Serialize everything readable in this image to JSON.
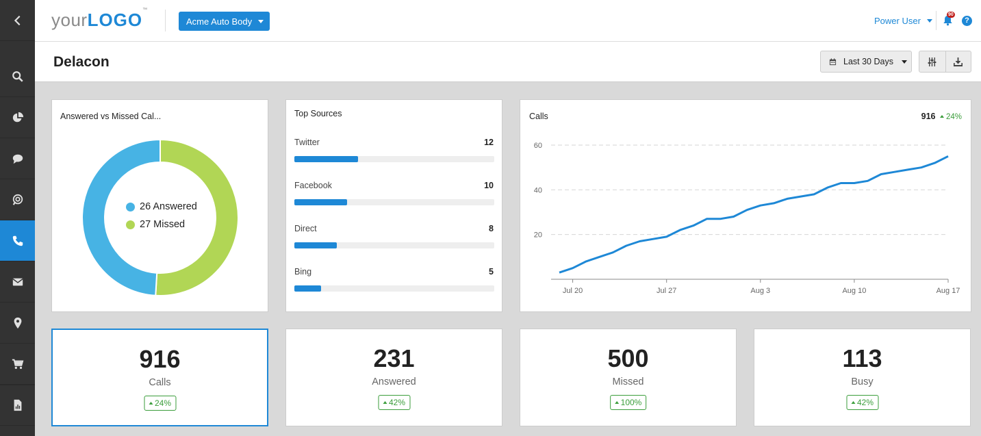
{
  "header": {
    "logo_prefix": "your",
    "logo_brand": "LOGO",
    "logo_tm": "™",
    "account": "Acme Auto Body",
    "user": "Power User",
    "notifications": "90",
    "help": "?"
  },
  "sidebar": {
    "items": [
      {
        "icon": "back-icon"
      },
      {
        "icon": "search-icon"
      },
      {
        "icon": "pie-chart-icon"
      },
      {
        "icon": "chat-icon"
      },
      {
        "icon": "ppc-icon"
      },
      {
        "icon": "phone-icon",
        "active": true
      },
      {
        "icon": "mail-icon"
      },
      {
        "icon": "location-pin-icon"
      },
      {
        "icon": "cart-icon"
      },
      {
        "icon": "report-icon"
      }
    ]
  },
  "page": {
    "title": "Delacon",
    "date_range": "Last 30 Days"
  },
  "donut": {
    "title": "Answered vs Missed Cal...",
    "answered_label": "26 Answered",
    "missed_label": "27 Missed",
    "answered": 26,
    "missed": 27,
    "colors": {
      "answered": "#47b3e4",
      "missed": "#b1d655"
    }
  },
  "sources": {
    "title": "Top Sources",
    "items": [
      {
        "label": "Twitter",
        "value": "12",
        "fraction": 0.32
      },
      {
        "label": "Facebook",
        "value": "10",
        "fraction": 0.265
      },
      {
        "label": "Direct",
        "value": "8",
        "fraction": 0.213
      },
      {
        "label": "Bing",
        "value": "5",
        "fraction": 0.133
      }
    ]
  },
  "calls_chart": {
    "title": "Calls",
    "total": "916",
    "change": "24%"
  },
  "chart_data": {
    "type": "line",
    "x": [
      "Jul 19",
      "Jul 20",
      "Jul 21",
      "Jul 22",
      "Jul 23",
      "Jul 24",
      "Jul 25",
      "Jul 26",
      "Jul 27",
      "Jul 28",
      "Jul 29",
      "Jul 30",
      "Jul 31",
      "Aug 1",
      "Aug 2",
      "Aug 3",
      "Aug 4",
      "Aug 5",
      "Aug 6",
      "Aug 7",
      "Aug 8",
      "Aug 9",
      "Aug 10",
      "Aug 11",
      "Aug 12",
      "Aug 13",
      "Aug 14",
      "Aug 15",
      "Aug 16",
      "Aug 17"
    ],
    "series": [
      {
        "values": [
          3,
          5,
          8,
          10,
          12,
          15,
          17,
          18,
          19,
          22,
          24,
          27,
          27,
          28,
          31,
          33,
          34,
          36,
          37,
          38,
          41,
          43,
          43,
          44,
          47,
          48,
          49,
          50,
          52,
          55
        ]
      }
    ],
    "xticks": [
      "Jul 20",
      "Jul 27",
      "Aug 3",
      "Aug 10",
      "Aug 17"
    ],
    "yticks": [
      "20",
      "40",
      "60"
    ],
    "ylim": [
      0,
      60
    ],
    "grid": true,
    "color": "#1e88d6"
  },
  "kpis": [
    {
      "value": "916",
      "label": "Calls",
      "change": "24%"
    },
    {
      "value": "231",
      "label": "Answered",
      "change": "42%"
    },
    {
      "value": "500",
      "label": "Missed",
      "change": "100%"
    },
    {
      "value": "113",
      "label": "Busy",
      "change": "42%"
    }
  ]
}
